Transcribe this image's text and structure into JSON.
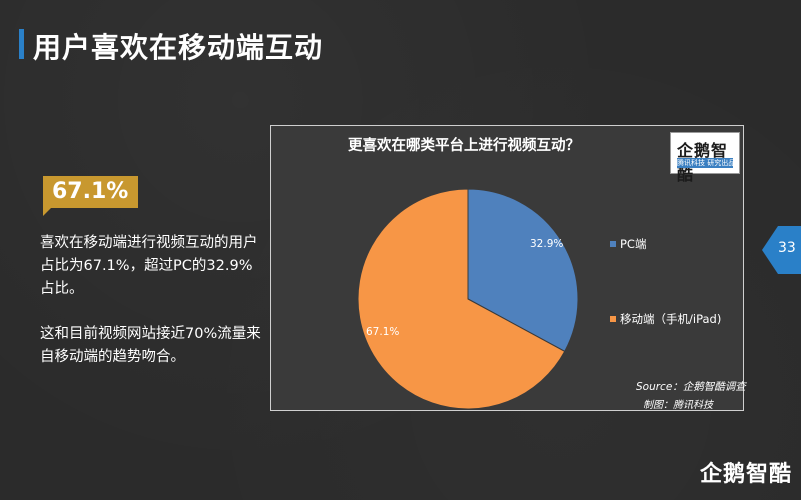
{
  "page": {
    "title": "用户喜欢在移动端互动",
    "page_number": "33",
    "brand": "企鹅智酷"
  },
  "highlight": {
    "value": "67.1%",
    "paragraph1": "喜欢在移动端进行视频互动的用户占比为67.1%，超过PC的32.9%占比。",
    "paragraph2": "这和目前视频网站接近70%流量来自移动端的趋势吻合。"
  },
  "panel": {
    "logo_main": "企鹅智酷",
    "logo_sub": "腾讯科技 研究出品",
    "source": "Source：企鹅智酷调查",
    "maker": "制图：腾讯科技"
  },
  "colors": {
    "accent": "#2a80c8",
    "badge": "#c8982f",
    "pc": "#4f81bd",
    "mobile": "#f79646"
  },
  "chart_data": {
    "type": "pie",
    "title": "更喜欢在哪类平台上进行视频互动？",
    "categories": [
      "PC端",
      "移动端（手机/iPad)"
    ],
    "values": [
      32.9,
      67.1
    ],
    "labels": [
      "32.9%",
      "67.1%"
    ],
    "legend_position": "right"
  }
}
